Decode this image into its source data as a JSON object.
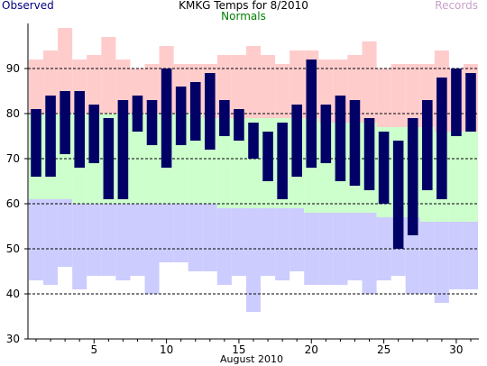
{
  "chart_data": {
    "type": "bar",
    "title": "KMKG Temps for 8/2010",
    "xlabel": "August 2010",
    "ylabel": "",
    "ylim": [
      30,
      100
    ],
    "yticks": [
      30,
      40,
      50,
      60,
      70,
      80,
      90
    ],
    "xticks": [
      5,
      10,
      15,
      20,
      25,
      30
    ],
    "grid": "horizontal dashed",
    "legend": [
      {
        "name": "Observed",
        "position": "top-left"
      },
      {
        "name": "Normals",
        "position": "top-center"
      },
      {
        "name": "Records",
        "position": "top-right"
      }
    ],
    "colors": {
      "observed": "#000066",
      "normals": "#ccffcc",
      "record_high": "#ffcccc",
      "record_low": "#ccccff",
      "observed_label": "#000080",
      "normals_label": "#008000",
      "records_label": "#c8a2c8"
    },
    "days": [
      1,
      2,
      3,
      4,
      5,
      6,
      7,
      8,
      9,
      10,
      11,
      12,
      13,
      14,
      15,
      16,
      17,
      18,
      19,
      20,
      21,
      22,
      23,
      24,
      25,
      26,
      27,
      28,
      29,
      30,
      31
    ],
    "series": [
      {
        "name": "Observed",
        "high": [
          81,
          84,
          85,
          85,
          82,
          79,
          83,
          84,
          83,
          90,
          86,
          87,
          89,
          83,
          81,
          78,
          76,
          78,
          82,
          92,
          82,
          84,
          83,
          79,
          76,
          74,
          79,
          83,
          88,
          90,
          89
        ],
        "low": [
          66,
          66,
          71,
          68,
          69,
          61,
          61,
          76,
          73,
          68,
          73,
          74,
          72,
          75,
          74,
          70,
          65,
          61,
          66,
          68,
          69,
          65,
          64,
          63,
          60,
          50,
          53,
          63,
          61,
          75,
          76
        ]
      },
      {
        "name": "Normals",
        "high": [
          80,
          80,
          80,
          80,
          80,
          80,
          80,
          80,
          80,
          80,
          80,
          80,
          79,
          79,
          79,
          79,
          79,
          79,
          79,
          79,
          78,
          78,
          78,
          78,
          77,
          77,
          77,
          77,
          76,
          76,
          76
        ],
        "low": [
          61,
          61,
          61,
          60,
          60,
          60,
          60,
          60,
          60,
          60,
          60,
          60,
          60,
          59,
          59,
          59,
          59,
          59,
          59,
          58,
          58,
          58,
          58,
          58,
          57,
          57,
          57,
          56,
          56,
          56,
          56
        ]
      },
      {
        "name": "Records",
        "high": [
          92,
          94,
          99,
          92,
          93,
          97,
          92,
          90,
          91,
          95,
          91,
          91,
          91,
          93,
          93,
          95,
          93,
          91,
          94,
          94,
          92,
          92,
          93,
          96,
          90,
          91,
          91,
          91,
          94,
          90,
          91
        ],
        "low": [
          43,
          42,
          46,
          41,
          44,
          44,
          43,
          44,
          40,
          47,
          47,
          45,
          45,
          42,
          44,
          36,
          44,
          43,
          45,
          42,
          42,
          42,
          43,
          40,
          43,
          44,
          40,
          40,
          38,
          41,
          41
        ]
      }
    ]
  }
}
